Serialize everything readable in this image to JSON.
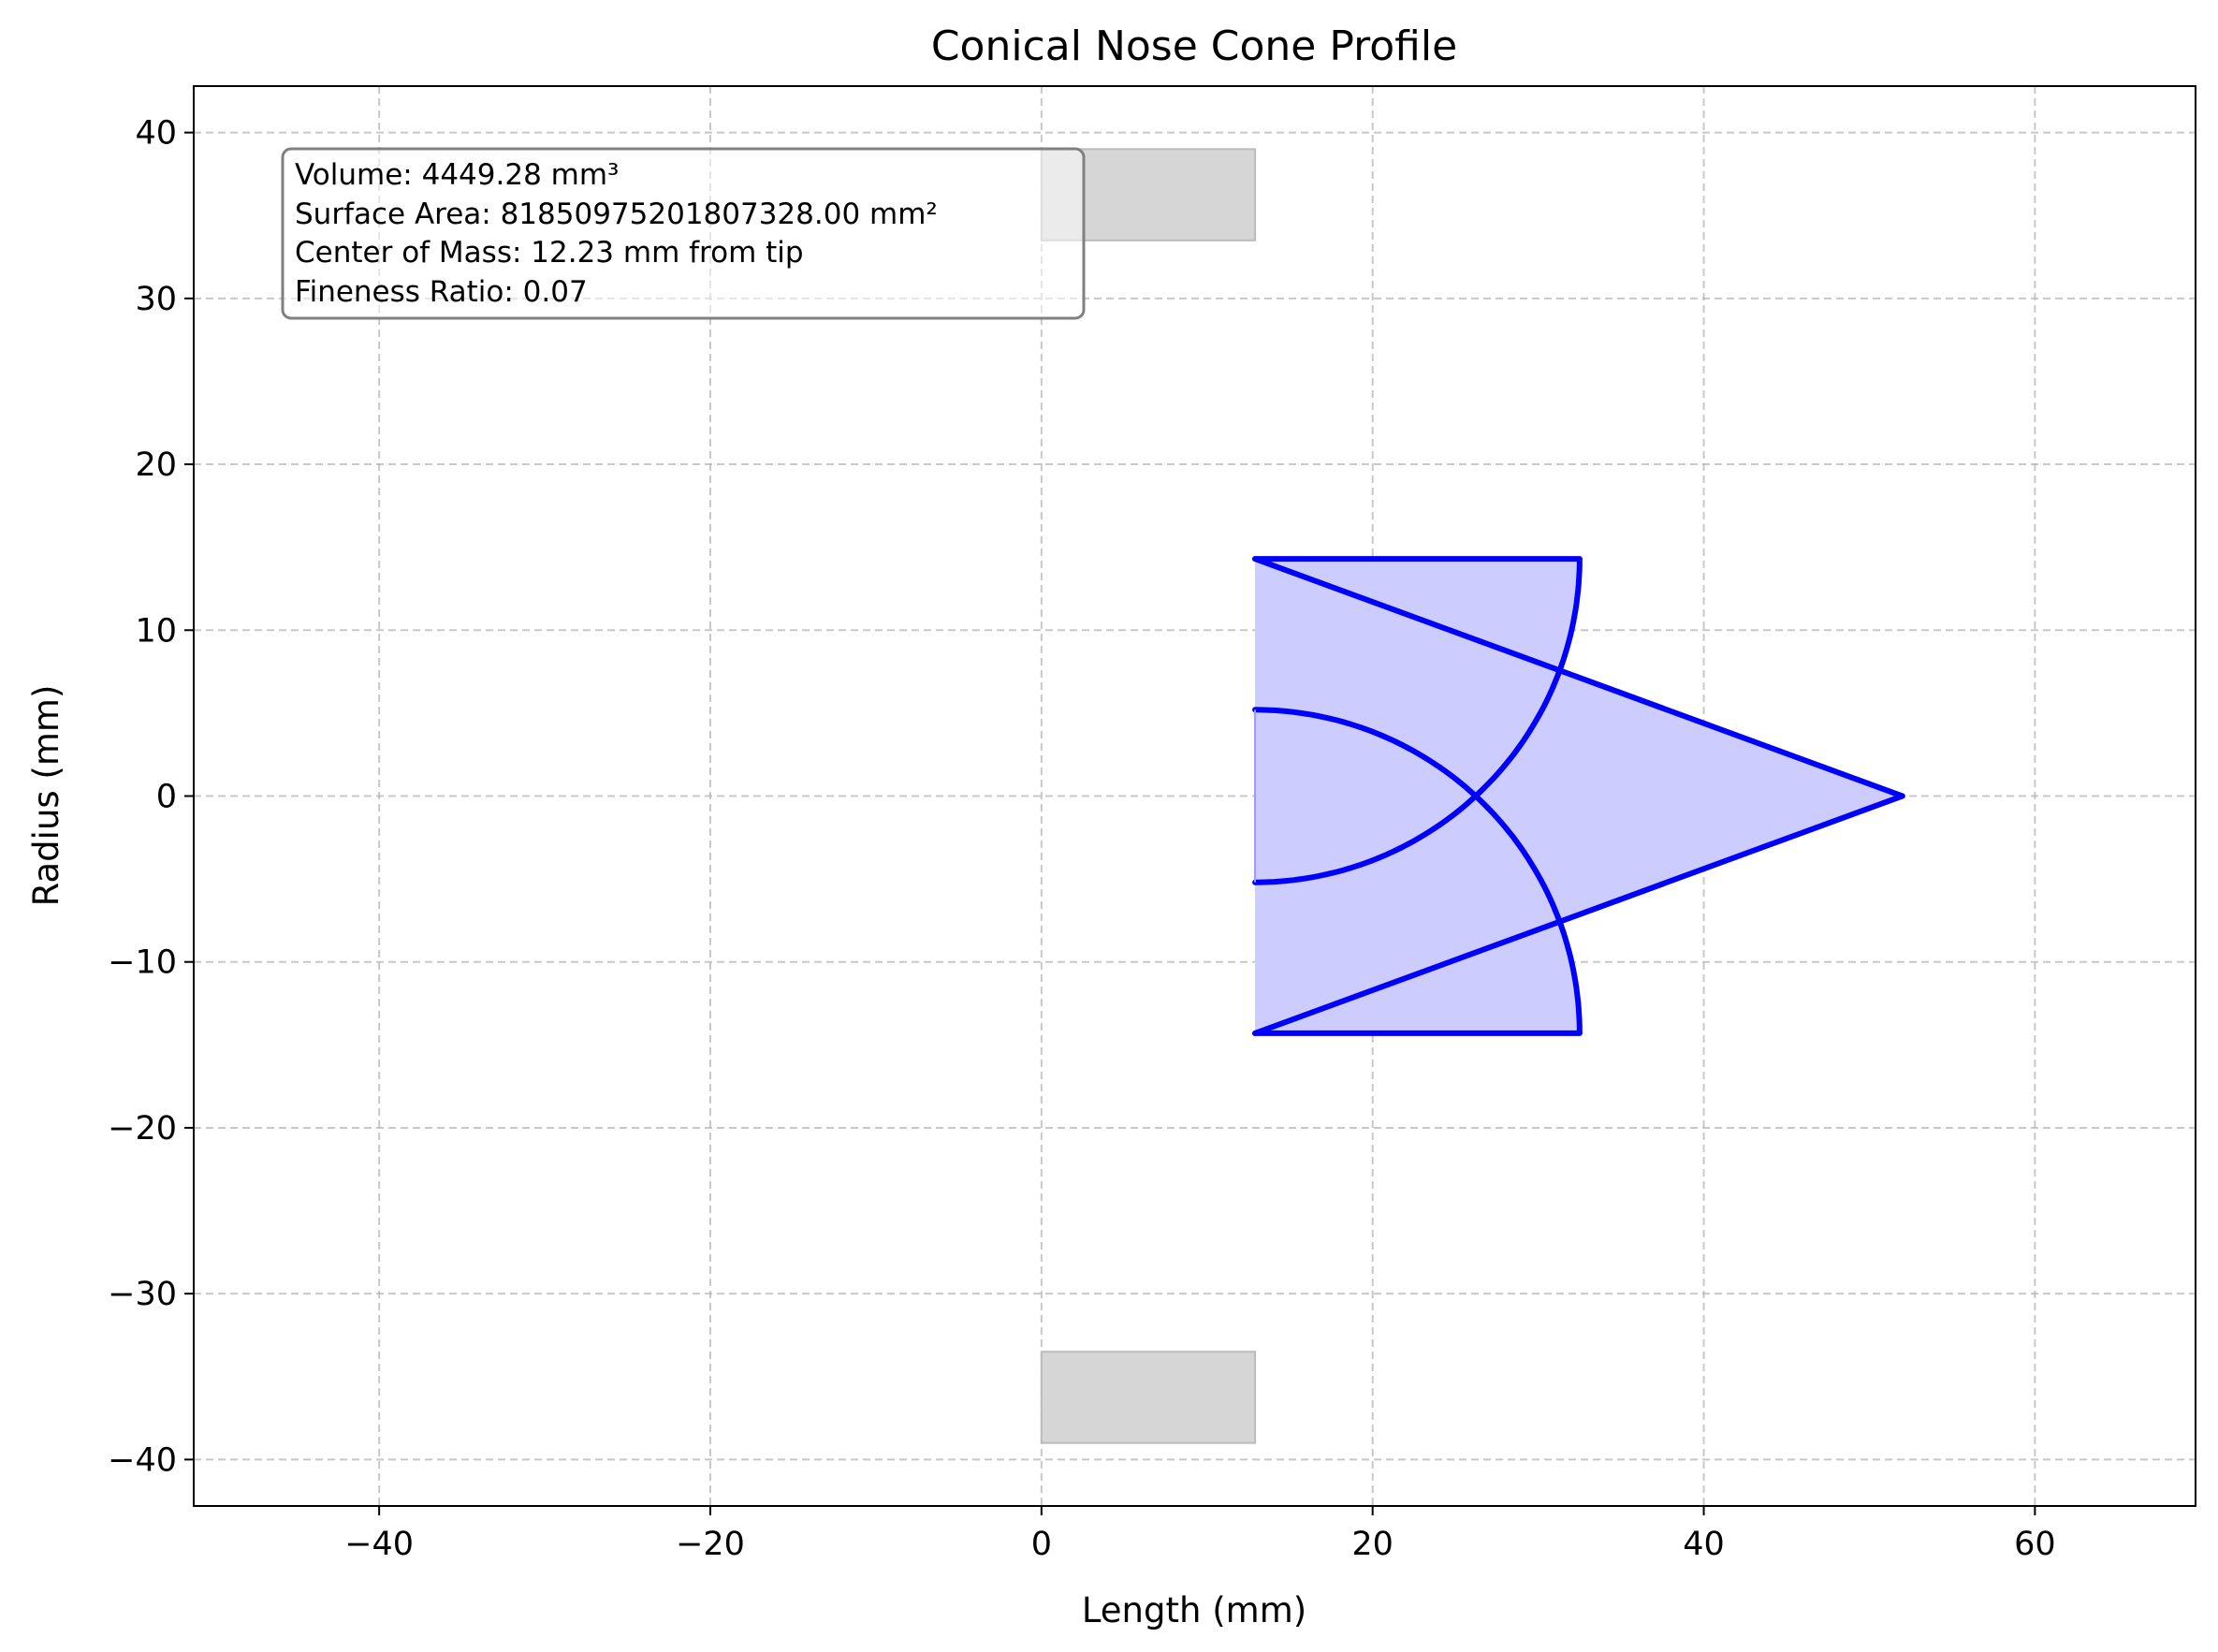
{
  "chart_data": {
    "type": "line",
    "title": "Conical Nose Cone Profile",
    "xlabel": "Length (mm)",
    "ylabel": "Radius (mm)",
    "xlim": [
      -51.2,
      69.7
    ],
    "ylim": [
      -42.8,
      42.8
    ],
    "xticks": [
      -40,
      -20,
      0,
      20,
      40,
      60
    ],
    "yticks": [
      -40,
      -30,
      -20,
      -10,
      0,
      10,
      20,
      30,
      40
    ],
    "xtick_labels": [
      "−40",
      "−20",
      "0",
      "20",
      "40",
      "60"
    ],
    "ytick_labels": [
      "−40",
      "−30",
      "−20",
      "−10",
      "0",
      "10",
      "20",
      "30",
      "40"
    ],
    "grid": true,
    "profile_color": "#0000ff",
    "fill_color": "#ccccff",
    "shoulder_color": "#d6d6d6",
    "shapes": [
      {
        "name": "cone-profile",
        "kind": "polygon",
        "points": [
          [
            12.9,
            14.3
          ],
          [
            52.0,
            0.0
          ],
          [
            12.9,
            -14.3
          ]
        ]
      },
      {
        "name": "upper-arc-profile",
        "kind": "arc",
        "center": [
          12.9,
          0.0
        ],
        "radius": 19.6,
        "note_angles_deg": [
          0,
          90
        ],
        "closed_with": [
          [
            12.9,
            14.3
          ],
          [
            32.5,
            14.3
          ]
        ]
      }
    ],
    "upper_region": {
      "x_start": 12.9,
      "x_end": 32.5,
      "y_top": 14.3
    },
    "lower_region": {
      "x_start": 12.9,
      "x_end": 32.5,
      "y_bottom": -14.3
    },
    "base_arc": {
      "x_start": 12.9,
      "x_end": 26.2,
      "radius": 5.2
    },
    "shoulders": [
      {
        "x": [
          0.0,
          12.9
        ],
        "y": [
          33.5,
          39.0
        ]
      },
      {
        "x": [
          0.0,
          12.9
        ],
        "y": [
          -39.0,
          -33.5
        ]
      }
    ],
    "annotation": {
      "lines": [
        "Volume: 4449.28 mm³",
        "Surface Area: 818509752018073​28.00 mm²",
        "Center of Mass: 12.23 mm from tip",
        "Fineness Ratio: 0.07"
      ]
    }
  }
}
